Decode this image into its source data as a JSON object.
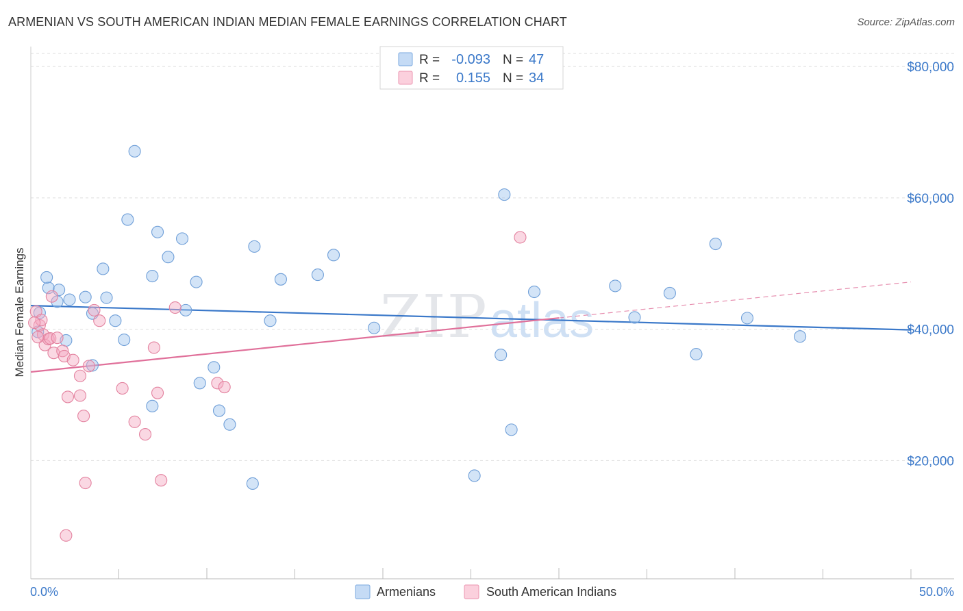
{
  "header": {
    "title": "ARMENIAN VS SOUTH AMERICAN INDIAN MEDIAN FEMALE EARNINGS CORRELATION CHART",
    "source": "Source: ZipAtlas.com"
  },
  "watermark": {
    "zip": "ZIP",
    "atlas": "atlas"
  },
  "legend_top": {
    "rows": [
      {
        "r_label": "R =",
        "r_value": "-0.093",
        "n_label": "N =",
        "n_value": "47",
        "color": "#9ec3ee"
      },
      {
        "r_label": "R =",
        "r_value": "0.155",
        "n_label": "N =",
        "n_value": "34",
        "color": "#f4a9c1"
      }
    ]
  },
  "legend_bottom": {
    "items": [
      {
        "label": "Armenians",
        "color": "#9ec3ee"
      },
      {
        "label": "South American Indians",
        "color": "#f4a9c1"
      }
    ]
  },
  "chart_data": {
    "type": "scatter",
    "title": "ARMENIAN VS SOUTH AMERICAN INDIAN MEDIAN FEMALE EARNINGS CORRELATION CHART",
    "xlabel": "",
    "ylabel": "Median Female Earnings",
    "xlim": [
      0,
      50
    ],
    "ylim": [
      2000,
      82000
    ],
    "x_tick_labels": [
      "0.0%",
      "50.0%"
    ],
    "y_ticks": [
      20000,
      40000,
      60000,
      80000
    ],
    "y_tick_labels": [
      "$20,000",
      "$40,000",
      "$60,000",
      "$80,000"
    ],
    "grid": true,
    "legend_position": "top-center",
    "series": [
      {
        "name": "Armenians",
        "color": "#9ec3ee",
        "stroke": "#6f9fd8",
        "trend": {
          "x": [
            0,
            50
          ],
          "y": [
            43600,
            39900
          ],
          "color": "#3a78c9",
          "dashed_from": null
        },
        "points": [
          [
            1.0,
            46300
          ],
          [
            0.9,
            47900
          ],
          [
            0.5,
            42500
          ],
          [
            1.6,
            46000
          ],
          [
            1.5,
            44200
          ],
          [
            2.2,
            44500
          ],
          [
            3.1,
            44900
          ],
          [
            2.0,
            38300
          ],
          [
            3.5,
            42400
          ],
          [
            4.1,
            49200
          ],
          [
            4.3,
            44800
          ],
          [
            4.8,
            41300
          ],
          [
            5.3,
            38400
          ],
          [
            5.5,
            56700
          ],
          [
            5.9,
            67100
          ],
          [
            6.9,
            48100
          ],
          [
            7.2,
            54800
          ],
          [
            7.8,
            51000
          ],
          [
            8.6,
            53800
          ],
          [
            8.8,
            42900
          ],
          [
            9.4,
            47200
          ],
          [
            3.5,
            34500
          ],
          [
            6.9,
            28300
          ],
          [
            9.6,
            31800
          ],
          [
            10.4,
            34200
          ],
          [
            10.7,
            27600
          ],
          [
            11.3,
            25500
          ],
          [
            12.7,
            52600
          ],
          [
            14.2,
            47600
          ],
          [
            13.6,
            41300
          ],
          [
            12.6,
            16500
          ],
          [
            16.3,
            48300
          ],
          [
            17.2,
            51300
          ],
          [
            19.5,
            40200
          ],
          [
            25.2,
            17700
          ],
          [
            26.9,
            60500
          ],
          [
            26.7,
            36100
          ],
          [
            27.3,
            24700
          ],
          [
            28.6,
            45700
          ],
          [
            33.2,
            46600
          ],
          [
            34.3,
            41800
          ],
          [
            36.3,
            45500
          ],
          [
            37.8,
            36200
          ],
          [
            38.9,
            53000
          ],
          [
            40.7,
            41700
          ],
          [
            43.7,
            38900
          ],
          [
            0.4,
            39600
          ]
        ]
      },
      {
        "name": "South American Indians",
        "color": "#f4a9c1",
        "stroke": "#e3829f",
        "trend": {
          "x": [
            0,
            50
          ],
          "y": [
            33500,
            47200
          ],
          "color": "#e0709a",
          "dashed_from": 30
        },
        "points": [
          [
            0.3,
            42700
          ],
          [
            0.5,
            40600
          ],
          [
            0.6,
            41400
          ],
          [
            0.7,
            39200
          ],
          [
            0.8,
            37600
          ],
          [
            1.0,
            38500
          ],
          [
            1.1,
            38600
          ],
          [
            1.2,
            45000
          ],
          [
            1.3,
            36400
          ],
          [
            1.5,
            38700
          ],
          [
            1.8,
            36700
          ],
          [
            1.9,
            35900
          ],
          [
            2.1,
            29700
          ],
          [
            2.4,
            35300
          ],
          [
            2.8,
            29900
          ],
          [
            2.8,
            32900
          ],
          [
            3.0,
            26800
          ],
          [
            3.3,
            34400
          ],
          [
            3.6,
            42900
          ],
          [
            3.9,
            41300
          ],
          [
            3.1,
            16600
          ],
          [
            2.0,
            8600
          ],
          [
            5.2,
            31000
          ],
          [
            5.9,
            25900
          ],
          [
            6.5,
            24000
          ],
          [
            7.0,
            37200
          ],
          [
            7.2,
            30300
          ],
          [
            7.4,
            17000
          ],
          [
            8.2,
            43300
          ],
          [
            10.6,
            31800
          ],
          [
            11.0,
            31200
          ],
          [
            27.8,
            54000
          ],
          [
            0.2,
            41000
          ],
          [
            0.4,
            38800
          ]
        ]
      }
    ]
  }
}
